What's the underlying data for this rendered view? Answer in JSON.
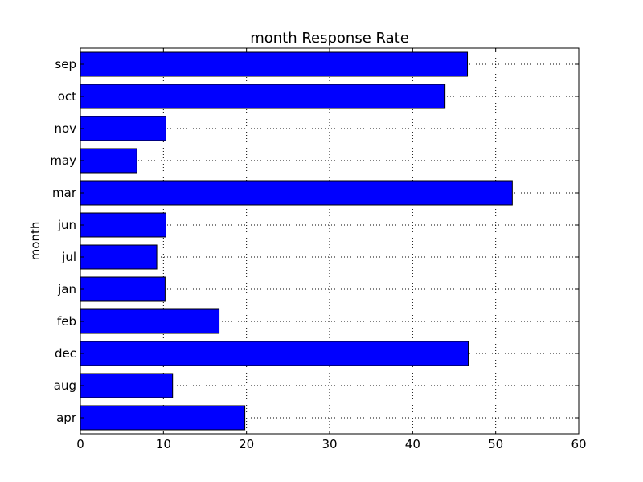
{
  "chart_data": {
    "type": "bar",
    "orientation": "horizontal",
    "title": "month Response Rate",
    "xlabel": "",
    "ylabel": "month",
    "categories": [
      "apr",
      "aug",
      "dec",
      "feb",
      "jan",
      "jul",
      "jun",
      "mar",
      "may",
      "nov",
      "oct",
      "sep"
    ],
    "values": [
      19.8,
      11.1,
      46.7,
      16.7,
      10.2,
      9.2,
      10.3,
      52.0,
      6.8,
      10.3,
      43.9,
      46.6
    ],
    "xlim": [
      0,
      60
    ],
    "xticks": [
      "0",
      "10",
      "20",
      "30",
      "40",
      "50",
      "60"
    ],
    "grid": true,
    "bar_color": "#0000ff",
    "edge_color": "#000000"
  }
}
